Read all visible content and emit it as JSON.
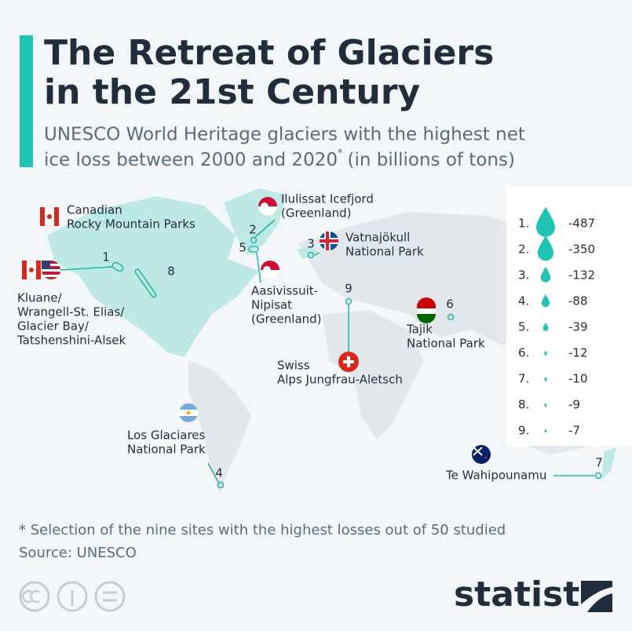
{
  "header": {
    "title": [
      "The Retreat of Glaciers",
      "in the 21st Century"
    ],
    "subtitle": [
      "UNESCO World Heritage glaciers with the highest net",
      "ice loss between 2000 and 2020"
    ],
    "subtitle_mark": "*",
    "subtitle_end": "(in billions of tons)"
  },
  "sites": [
    {
      "rank": 1,
      "legend_rank": "1.",
      "label": [
        "Kluane/",
        "Wrangell-St. Elias/",
        "Glacier Bay/",
        "Tatshenshini-Alsek"
      ],
      "loss": -487
    },
    {
      "rank": 2,
      "legend_rank": "2.",
      "label": [
        "Ilulissat Icefjord",
        "(Greenland)"
      ],
      "loss": -350
    },
    {
      "rank": 3,
      "legend_rank": "3.",
      "label": [
        "Vatnajökull",
        "National Park"
      ],
      "loss": -132
    },
    {
      "rank": 4,
      "legend_rank": "4.",
      "label": [
        "Los Glaciares",
        "National Park"
      ],
      "loss": -88
    },
    {
      "rank": 5,
      "legend_rank": "5.",
      "label": [
        "Aasivissuit-",
        "Nipisat",
        "(Greenland)"
      ],
      "loss": -39
    },
    {
      "rank": 6,
      "legend_rank": "6.",
      "label": [
        "Tajik",
        "National Park"
      ],
      "loss": -12
    },
    {
      "rank": 7,
      "legend_rank": "7.",
      "label": [
        "Te Wahipounamu"
      ],
      "loss": -10
    },
    {
      "rank": 8,
      "legend_rank": "8.",
      "label": [
        "Canadian",
        "Rocky Mountain Parks"
      ],
      "loss": -9
    },
    {
      "rank": 9,
      "legend_rank": "9.",
      "label": [
        "Swiss",
        "Alps Jungfrau-Aletsch"
      ],
      "loss": -7
    }
  ],
  "footnote": "* Selection of the nine sites with the highest losses out of 50 studied",
  "source": "Source: UNESCO",
  "brand": "statista"
}
